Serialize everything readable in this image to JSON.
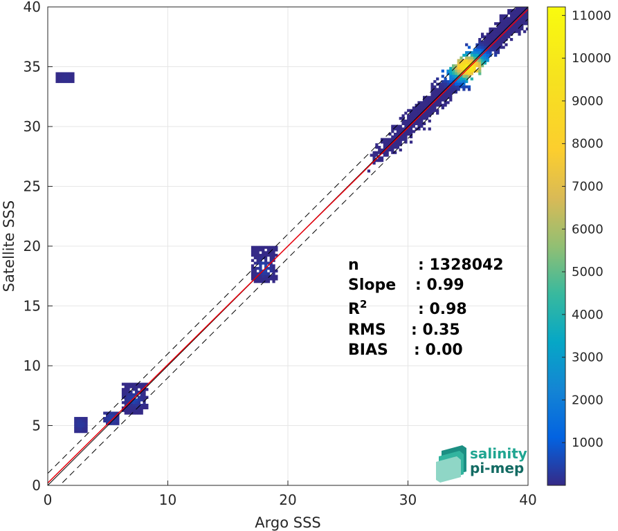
{
  "chart_data": {
    "type": "heatmap",
    "title": "",
    "xlabel": "Argo SSS",
    "ylabel": "Satellite SSS",
    "xlim": [
      0,
      40
    ],
    "ylim": [
      0,
      40
    ],
    "xticks": [
      0,
      10,
      20,
      30,
      40
    ],
    "yticks": [
      0,
      5,
      10,
      15,
      20,
      25,
      30,
      35,
      40
    ],
    "grid": true,
    "colormap": "parula",
    "colorbar": {
      "range": [
        0,
        11200
      ],
      "ticks": [
        1000,
        2000,
        3000,
        4000,
        5000,
        6000,
        7000,
        8000,
        9000,
        10000,
        11000
      ]
    },
    "reference_lines": {
      "one_to_one": {
        "slope": 1,
        "intercept": 0,
        "color": "#000000"
      },
      "fit": {
        "slope": 0.99,
        "intercept": 0.2,
        "color": "#e8000b"
      },
      "dashed_offsets": [
        1.0,
        -1.0
      ]
    },
    "density_clusters": [
      {
        "x": [
          27,
          40
        ],
        "y": [
          27,
          40
        ],
        "peak": [
          35,
          35
        ],
        "max_count": 11000
      },
      {
        "x": [
          17,
          19
        ],
        "y": [
          17,
          20
        ],
        "peak": [
          18,
          18.2
        ],
        "max_count": 600
      },
      {
        "x": [
          6.3,
          8.2
        ],
        "y": [
          6,
          8.5
        ],
        "peak": [
          7.2,
          7.2
        ],
        "max_count": 600
      },
      {
        "x": [
          4.8,
          5.8
        ],
        "y": [
          5.2,
          6.1
        ],
        "peak": [
          5.3,
          5.6
        ],
        "max_count": 400
      },
      {
        "x": [
          2.3,
          3.2
        ],
        "y": [
          4.4,
          5.7
        ],
        "peak": [
          2.7,
          5.1
        ],
        "max_count": 300
      },
      {
        "x": [
          0.8,
          2.2
        ],
        "y": [
          33.8,
          34.5
        ],
        "peak": [
          1.5,
          34.1
        ],
        "max_count": 100
      }
    ],
    "stats": [
      {
        "label": "n",
        "sep": ":",
        "value": "1328042"
      },
      {
        "label": "Slope",
        "sep": ":",
        "value": "0.99"
      },
      {
        "label": "R",
        "sup": "2",
        "sep": ":",
        "value": "0.98"
      },
      {
        "label": "RMS",
        "sep": ":",
        "value": "0.35"
      },
      {
        "label": "BIAS",
        "sep": ":",
        "value": "0.00"
      }
    ]
  },
  "logo": {
    "line1": "salinity",
    "line2": "pi-mep"
  },
  "colors": {
    "fit_line": "#e8000b",
    "ref_line": "#000000",
    "grid": "#e6e6e6",
    "logo_text": "#1fa591",
    "logo_dark": "#136b63"
  }
}
